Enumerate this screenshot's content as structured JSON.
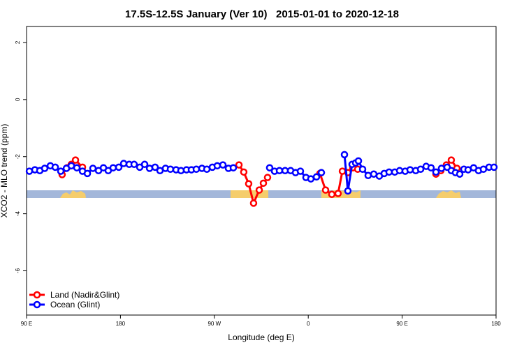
{
  "chart_data": {
    "type": "line",
    "title": "17.5S-12.5S January (Ver 10)   2015-01-01 to 2020-12-18",
    "x_label": "Longitude (deg E)",
    "y_label": "XCO2 - MLO trend (ppm)",
    "xlim": [
      90,
      540
    ],
    "xticks": [
      {
        "value": 90,
        "label": "90 E"
      },
      180,
      {
        "value": 270,
        "label": "90 W"
      },
      {
        "value": 360,
        "label": "0"
      },
      {
        "value": 450,
        "label": "90 E"
      },
      {
        "value": 540,
        "label": "180"
      }
    ],
    "ylim": [
      -7.55,
      2.56
    ],
    "yticks": [
      2,
      0,
      -2,
      -4,
      -6
    ],
    "legend": "bottom-left",
    "series": [
      {
        "name": "Land (Nadir&Glint)",
        "color": "#ff0000",
        "x": [
          124.1,
          128.8,
          132.9,
          136.9,
          143.6,
          null,
          293.6,
          298.2,
          302.9,
          307.6,
          313.0,
          317.0,
          321.0,
          null,
          371.2,
          376.6,
          382.6,
          388.6,
          392.7,
          398.0,
          402.7,
          407.4,
          null,
          482.4,
          487.1,
          492.4,
          497.1,
          502.5
        ],
        "values": [
          -2.63,
          -2.39,
          -2.27,
          -2.12,
          -2.37,
          null,
          -2.29,
          -2.54,
          -2.95,
          -3.63,
          -3.17,
          -2.93,
          -2.73,
          null,
          -2.59,
          -3.17,
          -3.32,
          -3.29,
          -2.51,
          -2.56,
          -2.39,
          -2.44,
          null,
          -2.61,
          -2.49,
          -2.29,
          -2.12,
          -2.41
        ]
      },
      {
        "name": "Ocean (Glint)",
        "color": "#0000ff",
        "x": [
          92.7,
          98.0,
          102.7,
          107.4,
          112.8,
          117.5,
          122.8,
          128.2,
          132.9,
          138.2,
          143.6,
          148.3,
          153.6,
          159.0,
          163.7,
          168.3,
          173.0,
          178.4,
          183.1,
          188.4,
          193.1,
          198.5,
          203.2,
          207.9,
          213.2,
          217.9,
          223.2,
          227.9,
          233.3,
          238.0,
          243.3,
          248.0,
          252.7,
          258.1,
          262.8,
          268.1,
          272.8,
          278.2,
          283.5,
          288.2,
          null,
          323.0,
          327.7,
          332.4,
          337.8,
          343.1,
          347.8,
          352.5,
          357.8,
          362.5,
          367.9,
          372.6,
          null,
          394.7,
          398.0,
          402.0,
          405.4,
          408.1,
          412.1,
          417.4,
          422.8,
          428.1,
          432.8,
          437.5,
          442.9,
          447.6,
          452.9,
          457.6,
          463.0,
          467.7,
          473.0,
          477.7,
          482.4,
          487.7,
          493.1,
          497.1,
          501.1,
          505.2,
          509.2,
          513.2,
          518.5,
          523.2,
          527.9,
          533.3,
          538.0
        ],
        "values": [
          -2.51,
          -2.46,
          -2.49,
          -2.41,
          -2.32,
          -2.37,
          -2.51,
          -2.41,
          -2.32,
          -2.39,
          -2.51,
          -2.59,
          -2.41,
          -2.49,
          -2.39,
          -2.49,
          -2.39,
          -2.37,
          -2.24,
          -2.27,
          -2.27,
          -2.37,
          -2.27,
          -2.41,
          -2.37,
          -2.49,
          -2.41,
          -2.44,
          -2.46,
          -2.49,
          -2.46,
          -2.46,
          -2.44,
          -2.41,
          -2.44,
          -2.37,
          -2.32,
          -2.29,
          -2.41,
          -2.39,
          null,
          -2.39,
          -2.51,
          -2.49,
          -2.49,
          -2.49,
          -2.56,
          -2.51,
          -2.73,
          -2.78,
          -2.71,
          -2.56,
          null,
          -1.93,
          -3.2,
          -2.27,
          -2.22,
          -2.15,
          -2.44,
          -2.66,
          -2.61,
          -2.68,
          -2.59,
          -2.54,
          -2.54,
          -2.49,
          -2.51,
          -2.46,
          -2.49,
          -2.44,
          -2.34,
          -2.39,
          -2.54,
          -2.41,
          -2.37,
          -2.49,
          -2.56,
          -2.61,
          -2.44,
          -2.46,
          -2.39,
          -2.49,
          -2.44,
          -2.37,
          -2.37
        ]
      }
    ]
  }
}
